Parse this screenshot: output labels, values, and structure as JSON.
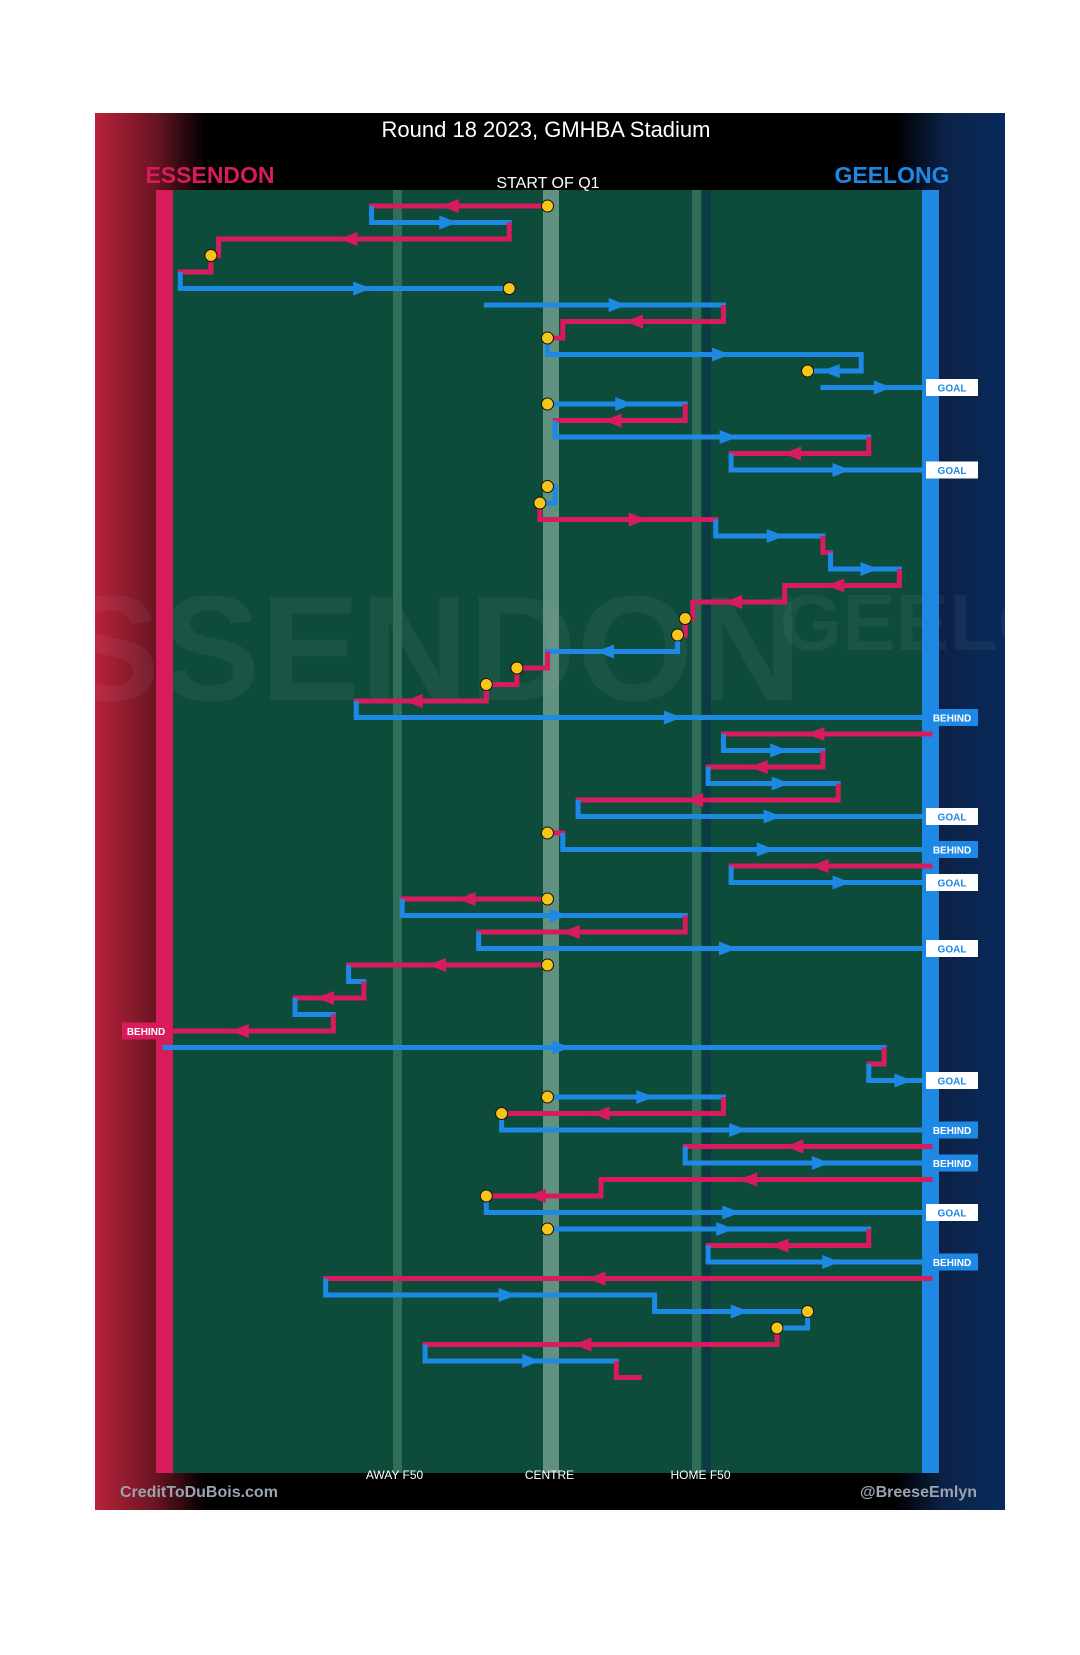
{
  "chart_data": {
    "type": "flow",
    "title": "Round 18 2023, GMHBA Stadium",
    "subtitle": "START OF Q1",
    "teams": {
      "left": {
        "name": "ESSENDON",
        "color": "#d81b5c"
      },
      "right": {
        "name": "GEELONG",
        "color": "#1e88e5"
      }
    },
    "colors": {
      "field": "#0d4b3b",
      "field_line": "#2f6f5a",
      "centre_line": "#7ea89a",
      "turnover": "#f5c518",
      "essendon": "#d81b5c",
      "geelong": "#1e88e5",
      "footer_bg": "#000000"
    },
    "x_axis": {
      "range": [
        0,
        100
      ],
      "ticks": [
        {
          "value": 30,
          "label": "AWAY F50"
        },
        {
          "value": 50,
          "label": "CENTRE"
        },
        {
          "value": 70,
          "label": "HOME F50"
        }
      ]
    },
    "watermarks": {
      "left": "ESSENDON",
      "right": "GEELONG"
    },
    "credits": {
      "left": "CreditToDuBois.com",
      "right": "@BreeseEmlyn"
    },
    "chains": [
      {
        "team": "ESS",
        "from": 50,
        "to": 27,
        "turnover": "start"
      },
      {
        "team": "GEE",
        "from": 27,
        "to": 45
      },
      {
        "team": "ESS",
        "from": 45,
        "to": 7
      },
      {
        "team": "ESS",
        "from": 7,
        "to": 6,
        "turnover": "end"
      },
      {
        "team": "ESS",
        "from": 6,
        "to": 2
      },
      {
        "team": "GEE",
        "from": 2,
        "to": 45,
        "turnover": "end"
      },
      {
        "team": "GEE",
        "from": 42,
        "to": 73
      },
      {
        "team": "ESS",
        "from": 73,
        "to": 52
      },
      {
        "team": "ESS",
        "from": 52,
        "to": 50,
        "turnover": "end"
      },
      {
        "team": "GEE",
        "from": 50,
        "to": 91
      },
      {
        "team": "GEE",
        "from": 91,
        "to": 84,
        "turnover": "end"
      },
      {
        "team": "GEE",
        "from": 86,
        "to": 100,
        "result": "GOAL"
      },
      {
        "team": "GEE",
        "from": 50,
        "to": 68,
        "turnover": "start"
      },
      {
        "team": "ESS",
        "from": 68,
        "to": 51
      },
      {
        "team": "GEE",
        "from": 51,
        "to": 92
      },
      {
        "team": "ESS",
        "from": 92,
        "to": 74
      },
      {
        "team": "GEE",
        "from": 74,
        "to": 100,
        "result": "GOAL"
      },
      {
        "team": "GEE",
        "from": 50,
        "to": 51,
        "turnover": "start"
      },
      {
        "team": "GEE",
        "from": 51,
        "to": 49,
        "turnover": "end"
      },
      {
        "team": "ESS",
        "from": 49,
        "to": 72
      },
      {
        "team": "GEE",
        "from": 72,
        "to": 86
      },
      {
        "team": "ESS",
        "from": 86,
        "to": 87
      },
      {
        "team": "GEE",
        "from": 87,
        "to": 96
      },
      {
        "team": "ESS",
        "from": 96,
        "to": 81
      },
      {
        "team": "ESS",
        "from": 81,
        "to": 69
      },
      {
        "team": "ESS",
        "from": 69,
        "to": 68,
        "turnover": "end"
      },
      {
        "team": "ESS",
        "from": 68,
        "to": 67,
        "turnover": "end"
      },
      {
        "team": "GEE",
        "from": 67,
        "to": 50
      },
      {
        "team": "ESS",
        "from": 50,
        "to": 46,
        "turnover": "end"
      },
      {
        "team": "ESS",
        "from": 46,
        "to": 42,
        "turnover": "end"
      },
      {
        "team": "ESS",
        "from": 42,
        "to": 25
      },
      {
        "team": "GEE",
        "from": 25,
        "to": 100,
        "result": "BEHIND"
      },
      {
        "team": "ESS",
        "from": 100,
        "to": 73
      },
      {
        "team": "GEE",
        "from": 73,
        "to": 86
      },
      {
        "team": "ESS",
        "from": 86,
        "to": 71
      },
      {
        "team": "GEE",
        "from": 71,
        "to": 88
      },
      {
        "team": "ESS",
        "from": 88,
        "to": 54
      },
      {
        "team": "GEE",
        "from": 54,
        "to": 100,
        "result": "GOAL"
      },
      {
        "team": "ESS",
        "from": 50,
        "to": 52,
        "turnover": "start"
      },
      {
        "team": "GEE",
        "from": 52,
        "to": 100,
        "result": "BEHIND"
      },
      {
        "team": "ESS",
        "from": 100,
        "to": 74
      },
      {
        "team": "GEE",
        "from": 74,
        "to": 100,
        "result": "GOAL"
      },
      {
        "team": "ESS",
        "from": 50,
        "to": 31,
        "turnover": "start"
      },
      {
        "team": "GEE",
        "from": 31,
        "to": 68
      },
      {
        "team": "ESS",
        "from": 68,
        "to": 41
      },
      {
        "team": "GEE",
        "from": 41,
        "to": 100,
        "result": "GOAL"
      },
      {
        "team": "ESS",
        "from": 50,
        "to": 24,
        "turnover": "start"
      },
      {
        "team": "GEE",
        "from": 24,
        "to": 26
      },
      {
        "team": "ESS",
        "from": 26,
        "to": 17
      },
      {
        "team": "GEE",
        "from": 17,
        "to": 22
      },
      {
        "team": "ESS",
        "from": 22,
        "to": 0,
        "result": "BEHIND"
      },
      {
        "team": "GEE",
        "from": 0,
        "to": 94
      },
      {
        "team": "ESS",
        "from": 94,
        "to": 92
      },
      {
        "team": "GEE",
        "from": 92,
        "to": 100,
        "result": "GOAL"
      },
      {
        "team": "GEE",
        "from": 50,
        "to": 73,
        "turnover": "start"
      },
      {
        "team": "ESS",
        "from": 73,
        "to": 44,
        "turnover": "end"
      },
      {
        "team": "GEE",
        "from": 44,
        "to": 100,
        "result": "BEHIND"
      },
      {
        "team": "ESS",
        "from": 100,
        "to": 68
      },
      {
        "team": "GEE",
        "from": 68,
        "to": 100,
        "result": "BEHIND"
      },
      {
        "team": "ESS",
        "from": 100,
        "to": 57
      },
      {
        "team": "ESS",
        "from": 57,
        "to": 42,
        "turnover": "end"
      },
      {
        "team": "GEE",
        "from": 42,
        "to": 100,
        "result": "GOAL"
      },
      {
        "team": "GEE",
        "from": 50,
        "to": 92,
        "turnover": "start"
      },
      {
        "team": "ESS",
        "from": 92,
        "to": 71
      },
      {
        "team": "GEE",
        "from": 71,
        "to": 100,
        "result": "BEHIND"
      },
      {
        "team": "ESS",
        "from": 100,
        "to": 21
      },
      {
        "team": "GEE",
        "from": 21,
        "to": 64
      },
      {
        "team": "GEE",
        "from": 64,
        "to": 84,
        "turnover": "end"
      },
      {
        "team": "GEE",
        "from": 84,
        "to": 80,
        "turnover": "end"
      },
      {
        "team": "ESS",
        "from": 80,
        "to": 34
      },
      {
        "team": "GEE",
        "from": 34,
        "to": 59
      },
      {
        "team": "ESS",
        "from": 59,
        "to": 62
      }
    ]
  }
}
